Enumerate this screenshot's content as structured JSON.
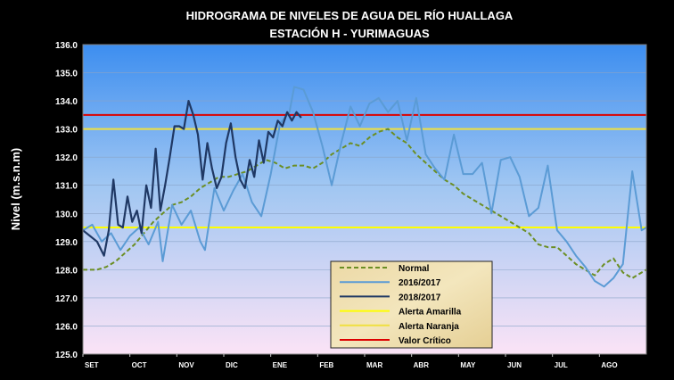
{
  "chart_data": {
    "type": "line",
    "title": "HIDROGRAMA DE NIVELES DE AGUA DEL RÍO HUALLAGA",
    "subtitle": "ESTACIÓN H - YURIMAGUAS",
    "ylabel": "Nivel (m.s.n.m)",
    "xlabel": "",
    "ylim": [
      125.0,
      136.0
    ],
    "y_ticks": [
      "125.0",
      "126.0",
      "127.0",
      "128.0",
      "129.0",
      "130.0",
      "131.0",
      "132.0",
      "133.0",
      "134.0",
      "135.0",
      "136.0"
    ],
    "x_ticks": [
      "SET",
      "OCT",
      "NOV",
      "DIC",
      "ENE",
      "FEB",
      "MAR",
      "ABR",
      "MAY",
      "JUN",
      "JUL",
      "AGO"
    ],
    "x_domain": [
      0,
      12
    ],
    "legend_position": "bottom-center",
    "thresholds": [
      {
        "name": "Alerta Amarilla",
        "value": 129.5,
        "color": "#ffff00"
      },
      {
        "name": "Alerta Naranja",
        "value": 133.0,
        "color": "#f0e040"
      },
      {
        "name": "Valor Crítico",
        "value": 133.5,
        "color": "#dd0000"
      }
    ],
    "series": [
      {
        "name": "Normal",
        "color": "#6b8e23",
        "dash": true,
        "x": [
          0.0,
          0.3,
          0.5,
          0.7,
          0.9,
          1.1,
          1.3,
          1.5,
          1.7,
          1.9,
          2.1,
          2.3,
          2.5,
          2.7,
          2.9,
          3.1,
          3.3,
          3.5,
          3.7,
          3.9,
          4.1,
          4.3,
          4.5,
          4.7,
          4.9,
          5.1,
          5.3,
          5.5,
          5.7,
          5.9,
          6.1,
          6.3,
          6.5,
          6.7,
          6.9,
          7.1,
          7.3,
          7.5,
          7.7,
          7.9,
          8.1,
          8.3,
          8.5,
          8.7,
          8.9,
          9.1,
          9.3,
          9.5,
          9.7,
          9.9,
          10.1,
          10.3,
          10.5,
          10.7,
          10.9,
          11.1,
          11.3,
          11.5,
          11.7,
          11.9,
          12.0
        ],
        "values": [
          128.0,
          128.0,
          128.1,
          128.3,
          128.6,
          128.9,
          129.3,
          129.7,
          130.0,
          130.3,
          130.4,
          130.6,
          130.9,
          131.1,
          131.3,
          131.3,
          131.4,
          131.5,
          131.7,
          131.9,
          131.8,
          131.6,
          131.7,
          131.7,
          131.6,
          131.8,
          132.1,
          132.3,
          132.5,
          132.4,
          132.7,
          132.9,
          133.0,
          132.7,
          132.5,
          132.1,
          131.8,
          131.5,
          131.2,
          131.0,
          130.7,
          130.5,
          130.3,
          130.1,
          129.9,
          129.7,
          129.5,
          129.3,
          128.9,
          128.8,
          128.8,
          128.5,
          128.2,
          128.0,
          127.8,
          128.2,
          128.4,
          127.9,
          127.7,
          127.9,
          128.0
        ]
      },
      {
        "name": "2016/2017",
        "color": "#5b9bd5",
        "dash": false,
        "x": [
          0.0,
          0.2,
          0.4,
          0.6,
          0.8,
          1.0,
          1.2,
          1.4,
          1.6,
          1.7,
          1.9,
          2.1,
          2.3,
          2.5,
          2.6,
          2.8,
          3.0,
          3.2,
          3.4,
          3.6,
          3.8,
          4.0,
          4.2,
          4.4,
          4.5,
          4.7,
          4.9,
          5.1,
          5.3,
          5.5,
          5.7,
          5.9,
          6.1,
          6.3,
          6.5,
          6.7,
          6.9,
          7.1,
          7.3,
          7.5,
          7.7,
          7.9,
          8.1,
          8.3,
          8.5,
          8.7,
          8.9,
          9.1,
          9.3,
          9.5,
          9.7,
          9.9,
          10.1,
          10.3,
          10.5,
          10.7,
          10.9,
          11.1,
          11.3,
          11.5,
          11.7,
          11.9,
          12.0
        ],
        "values": [
          129.4,
          129.6,
          129.0,
          129.3,
          128.7,
          129.2,
          129.5,
          128.9,
          129.7,
          128.3,
          130.3,
          129.6,
          130.1,
          129.0,
          128.7,
          130.9,
          130.1,
          130.8,
          131.4,
          130.4,
          129.9,
          131.4,
          133.2,
          133.6,
          134.5,
          134.4,
          133.6,
          132.4,
          131.0,
          132.5,
          133.8,
          133.1,
          133.9,
          134.1,
          133.6,
          134.0,
          132.6,
          134.1,
          132.1,
          131.6,
          131.2,
          132.8,
          131.4,
          131.4,
          131.8,
          130.0,
          131.9,
          132.0,
          131.3,
          129.9,
          130.2,
          131.7,
          129.4,
          129.0,
          128.5,
          128.1,
          127.6,
          127.4,
          127.7,
          128.2,
          131.5,
          129.4,
          129.5
        ]
      },
      {
        "name": "2018/2017",
        "color": "#1f3864",
        "dash": false,
        "x": [
          0.0,
          0.15,
          0.3,
          0.45,
          0.55,
          0.65,
          0.75,
          0.85,
          0.95,
          1.05,
          1.15,
          1.25,
          1.35,
          1.45,
          1.55,
          1.65,
          1.75,
          1.85,
          1.95,
          2.05,
          2.15,
          2.25,
          2.35,
          2.45,
          2.55,
          2.65,
          2.75,
          2.85,
          2.95,
          3.05,
          3.15,
          3.25,
          3.35,
          3.45,
          3.55,
          3.65,
          3.75,
          3.85,
          3.95,
          4.05,
          4.15,
          4.25,
          4.35,
          4.45,
          4.55,
          4.65
        ],
        "values": [
          129.4,
          129.2,
          129.0,
          128.5,
          129.4,
          131.2,
          129.6,
          129.5,
          130.6,
          129.7,
          130.1,
          129.3,
          131.0,
          130.2,
          132.3,
          130.1,
          131.0,
          132.0,
          133.1,
          133.1,
          133.0,
          134.0,
          133.5,
          132.8,
          131.2,
          132.5,
          131.6,
          130.9,
          131.3,
          132.5,
          133.2,
          132.0,
          131.2,
          130.9,
          131.9,
          131.3,
          132.6,
          131.8,
          132.9,
          132.7,
          133.3,
          133.1,
          133.6,
          133.3,
          133.6,
          133.4
        ]
      }
    ]
  },
  "legend": {
    "items": [
      {
        "label": "Normal",
        "color": "#6b8e23",
        "dash": true
      },
      {
        "label": "2016/2017",
        "color": "#5b9bd5",
        "dash": false
      },
      {
        "label": "2018/2017",
        "color": "#1f3864",
        "dash": false
      },
      {
        "label": "Alerta Amarilla",
        "color": "#ffff00",
        "dash": false
      },
      {
        "label": "Alerta Naranja",
        "color": "#f0e040",
        "dash": false
      },
      {
        "label": "Valor Crítico",
        "color": "#dd0000",
        "dash": false
      }
    ]
  }
}
